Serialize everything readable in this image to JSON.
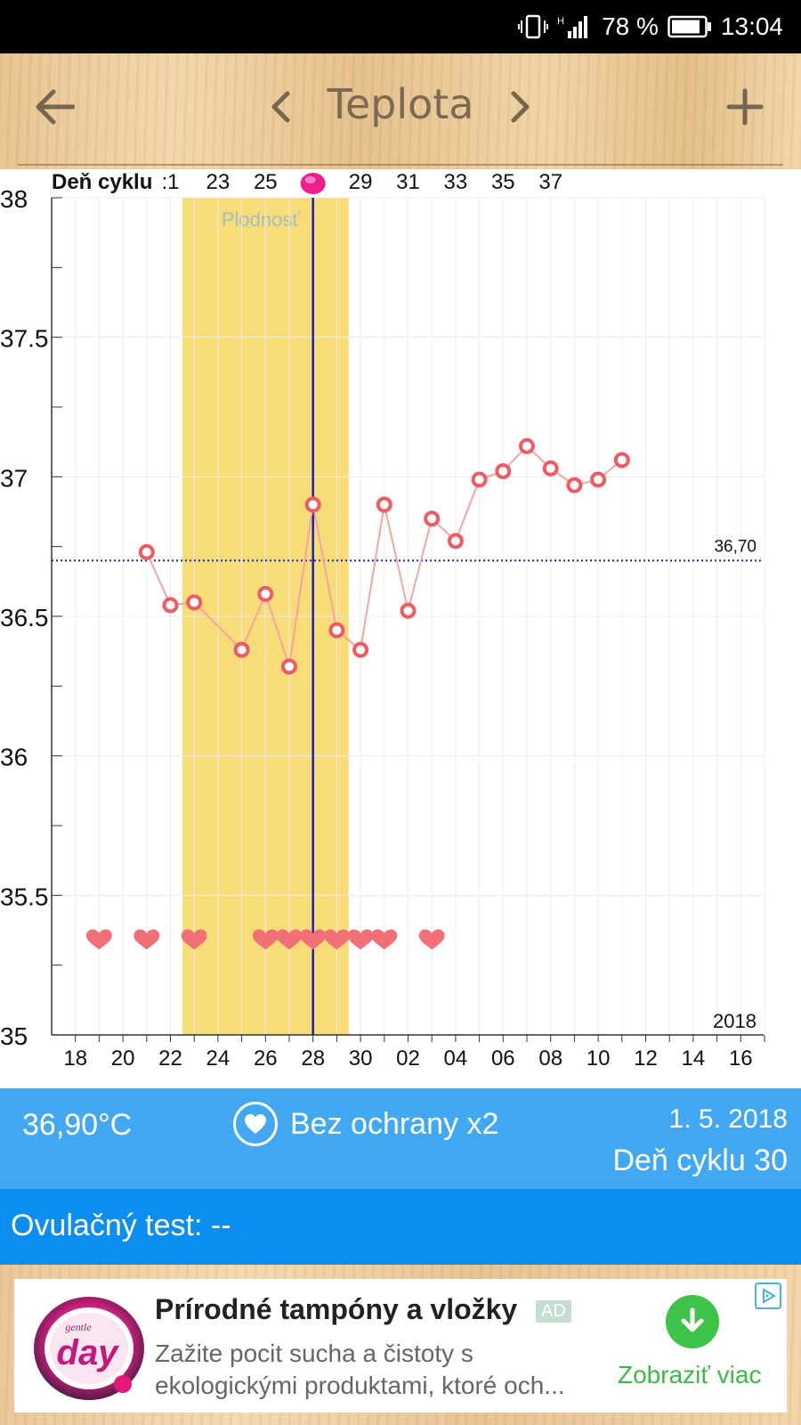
{
  "status_bar": {
    "network": "H",
    "battery": "78 %",
    "time": "13:04"
  },
  "toolbar": {
    "title": "Teplota",
    "back_icon": "arrow-left-icon",
    "prev_icon": "chevron-left-icon",
    "next_icon": "chevron-right-icon",
    "add_icon": "plus-icon"
  },
  "chart_data": {
    "type": "line",
    "title": "",
    "top_axis_label": "Deň cyklu",
    "top_ticks": [
      ":1",
      "23",
      "25",
      "",
      "29",
      "31",
      "33",
      "35",
      "37"
    ],
    "x_ticks": [
      "18",
      "20",
      "22",
      "24",
      "26",
      "28",
      "30",
      "02",
      "04",
      "06",
      "08",
      "10",
      "12",
      "14",
      "16"
    ],
    "y_ticks": [
      "35",
      "35.5",
      "36",
      "36.5",
      "37",
      "37.5",
      "38"
    ],
    "ylim": [
      35,
      38
    ],
    "year_label": "2018",
    "fertile_label": "Plodnosť",
    "fertile_window": [
      23,
      30
    ],
    "selected_day": 28,
    "coverline": 36.7,
    "coverline_label": "36,70",
    "series": [
      {
        "x": [
          21,
          22,
          23,
          25,
          26,
          27,
          28,
          29,
          30,
          31,
          32,
          33,
          34,
          35,
          36,
          37,
          38,
          39,
          40,
          41
        ],
        "values": [
          36.73,
          36.54,
          36.55,
          36.38,
          36.58,
          36.32,
          36.9,
          36.45,
          36.38,
          36.9,
          36.52,
          36.85,
          36.77,
          36.99,
          37.02,
          37.11,
          37.03,
          36.97,
          36.99,
          37.06
        ]
      }
    ],
    "intercourse_days": [
      19,
      21,
      23,
      26,
      27,
      28,
      29,
      30,
      31,
      33
    ],
    "colors": {
      "line": "#f5a3a3",
      "point": "#f05a63",
      "fertile": "#f8dc78",
      "selected": "#1f1fb8",
      "coverline": "#1e1ec8",
      "heart": "#f26f77",
      "ovulation": "#ec1f8c"
    }
  },
  "info": {
    "temperature": "36,90°C",
    "sex_label": "Bez ochrany x2",
    "sex_icon": "heart-icon",
    "date": "1. 5. 2018",
    "cycle_day": "Deň cyklu 30"
  },
  "ovulation_test": {
    "label": "Ovulačný test: --"
  },
  "ad": {
    "logo_text": "day",
    "logo_sub": "gentle",
    "title": "Prírodné tampóny a vložky",
    "badge": "AD",
    "desc_line1": "Zažite pocit sucha a čistoty s",
    "desc_line2": "ekologickými produktami, ktoré och...",
    "cta": "Zobraziť viac",
    "cta_icon": "download-arrow-icon",
    "choices_icon": "adchoices-icon"
  }
}
